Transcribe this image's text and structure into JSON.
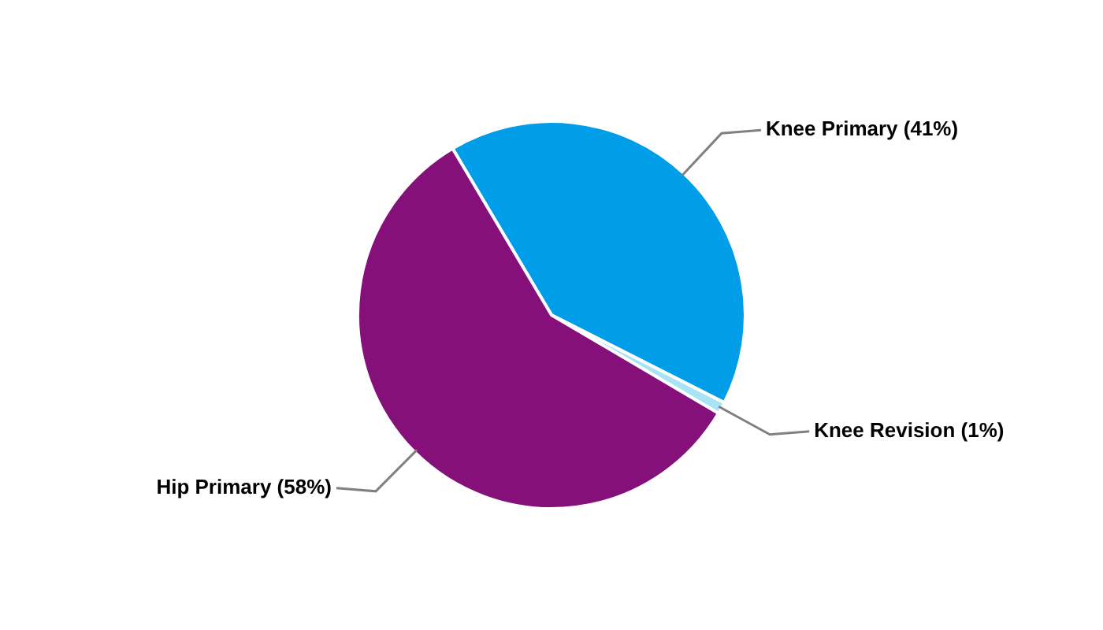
{
  "chart_data": {
    "type": "pie",
    "categories": [
      "Knee Primary (41%)",
      "Knee Revision (1%)",
      "Hip Primary (58%)"
    ],
    "values": [
      41,
      1,
      58
    ],
    "colors": [
      "#009de8",
      "#a8e3f6",
      "#861079"
    ],
    "legend": false
  }
}
